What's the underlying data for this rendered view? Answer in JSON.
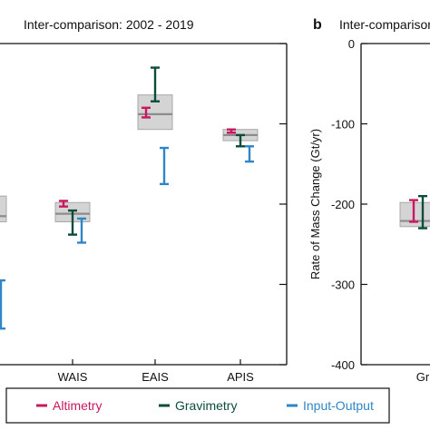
{
  "chart_data": [
    {
      "type": "range",
      "title": "Inter-comparison: 2002 - 2019",
      "categories": [
        "WAIS",
        "EAIS",
        "APIS"
      ],
      "ylim": [
        -400,
        0
      ],
      "grid": false,
      "boxes": [
        {
          "category": "WAIS",
          "low": -222,
          "high": -198,
          "mean": -212
        },
        {
          "category": "EAIS",
          "low": -107,
          "high": -64,
          "mean": -88
        },
        {
          "category": "APIS",
          "low": -121,
          "high": -107,
          "mean": -114
        }
      ],
      "series": [
        {
          "name": "Altimetry",
          "color": "#c8195f",
          "ranges": [
            {
              "category": "WAIS",
              "low": -203,
              "high": -196
            },
            {
              "category": "EAIS",
              "low": -92,
              "high": -80
            },
            {
              "category": "APIS",
              "low": -111,
              "high": -107
            }
          ]
        },
        {
          "name": "Gravimetry",
          "color": "#0b4d3a",
          "ranges": [
            {
              "category": "WAIS",
              "low": -238,
              "high": -208
            },
            {
              "category": "EAIS",
              "low": -72,
              "high": -30
            },
            {
              "category": "APIS",
              "low": -128,
              "high": -114
            }
          ]
        },
        {
          "name": "Input-Output",
          "color": "#2e86c8",
          "ranges": [
            {
              "category": "WAIS",
              "low": -248,
              "high": -218
            },
            {
              "category": "EAIS",
              "low": -175,
              "high": -130
            },
            {
              "category": "APIS",
              "low": -147,
              "high": -128
            }
          ]
        }
      ],
      "partial": [
        {
          "low": -222,
          "high": -190,
          "mean": -215
        },
        {
          "color": "#2e86c8",
          "low": -355,
          "high": -295
        }
      ]
    },
    {
      "type": "range",
      "panel_label": "b",
      "title": "Inter-comparison",
      "ylabel": "Rate of Mass Change (Gt/yr)",
      "yticks": [
        0,
        -100,
        -200,
        -300,
        -400
      ],
      "ylim": [
        -400,
        0
      ],
      "categories": [
        "Gr"
      ],
      "boxes": [
        {
          "category": "Gr",
          "low": -228,
          "high": -198,
          "mean": -221
        }
      ],
      "series": [
        {
          "name": "Altimetry",
          "color": "#c8195f",
          "ranges": [
            {
              "category": "Gr",
              "low": -222,
              "high": -195
            }
          ]
        },
        {
          "name": "Gravimetry",
          "color": "#0b4d3a",
          "ranges": [
            {
              "category": "Gr",
              "low": -230,
              "high": -190
            }
          ]
        }
      ]
    }
  ],
  "legend": {
    "items": [
      {
        "label": "Altimetry",
        "color": "#c8195f"
      },
      {
        "label": "Gravimetry",
        "color": "#0b4d3a"
      },
      {
        "label": "Input-Output",
        "color": "#2e86c8"
      }
    ]
  }
}
